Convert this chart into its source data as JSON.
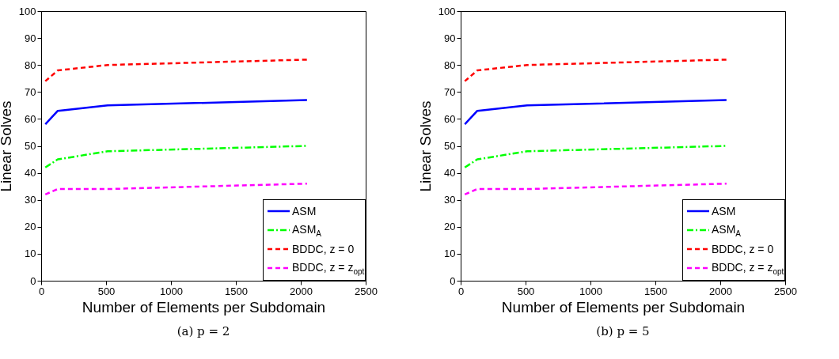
{
  "chart_data": [
    {
      "type": "line",
      "x": [
        32,
        128,
        512,
        2048
      ],
      "xlabel": "Number of Elements per Subdomain",
      "ylabel": "Linear Solves",
      "xlim": [
        0,
        2500
      ],
      "xticks": [
        0,
        500,
        1000,
        1500,
        2000,
        2500
      ],
      "ylim": [
        0,
        100
      ],
      "yticks": [
        0,
        10,
        20,
        30,
        40,
        50,
        60,
        70,
        80,
        90,
        100
      ],
      "grid": false,
      "legend": "bottom right",
      "annotations": [
        "(a) p = 2"
      ],
      "series": [
        {
          "name": "ASM",
          "color": "#0000ff",
          "line_style": "solid",
          "values": [
            58,
            63,
            65,
            67
          ]
        },
        {
          "name": "ASM$_{A}$",
          "color": "#00ff00",
          "line_style": "dashdot",
          "values": [
            42,
            45,
            48,
            50
          ]
        },
        {
          "name": "BDDC, z = 0",
          "color": "#ff0000",
          "line_style": "dashed",
          "values": [
            74,
            78,
            80,
            82
          ]
        },
        {
          "name": "BDDC, z = z$_{opt}$",
          "color": "#ff00ff",
          "line_style": "dashed",
          "values": [
            32,
            34,
            34,
            36
          ]
        }
      ]
    },
    {
      "type": "line",
      "x": [
        32,
        128,
        512,
        2048
      ],
      "xlabel": "Number of Elements per Subdomain",
      "ylabel": "Linear Solves",
      "xlim": [
        0,
        2500
      ],
      "xticks": [
        0,
        500,
        1000,
        1500,
        2000,
        2500
      ],
      "ylim": [
        0,
        100
      ],
      "yticks": [
        0,
        10,
        20,
        30,
        40,
        50,
        60,
        70,
        80,
        90,
        100
      ],
      "grid": false,
      "legend": "bottom right",
      "annotations": [
        "(b) p = 5"
      ],
      "series": [
        {
          "name": "ASM",
          "color": "#0000ff",
          "line_style": "solid",
          "values": [
            58,
            63,
            65,
            67
          ]
        },
        {
          "name": "ASM$_{A}$",
          "color": "#00ff00",
          "line_style": "dashdot",
          "values": [
            42,
            45,
            48,
            50
          ]
        },
        {
          "name": "BDDC, z = 0",
          "color": "#ff0000",
          "line_style": "dashed",
          "values": [
            74,
            78,
            80,
            82
          ]
        },
        {
          "name": "BDDC, z = z$_{opt}$",
          "color": "#ff00ff",
          "line_style": "dashed",
          "values": [
            32,
            34,
            34,
            36
          ]
        }
      ]
    }
  ]
}
